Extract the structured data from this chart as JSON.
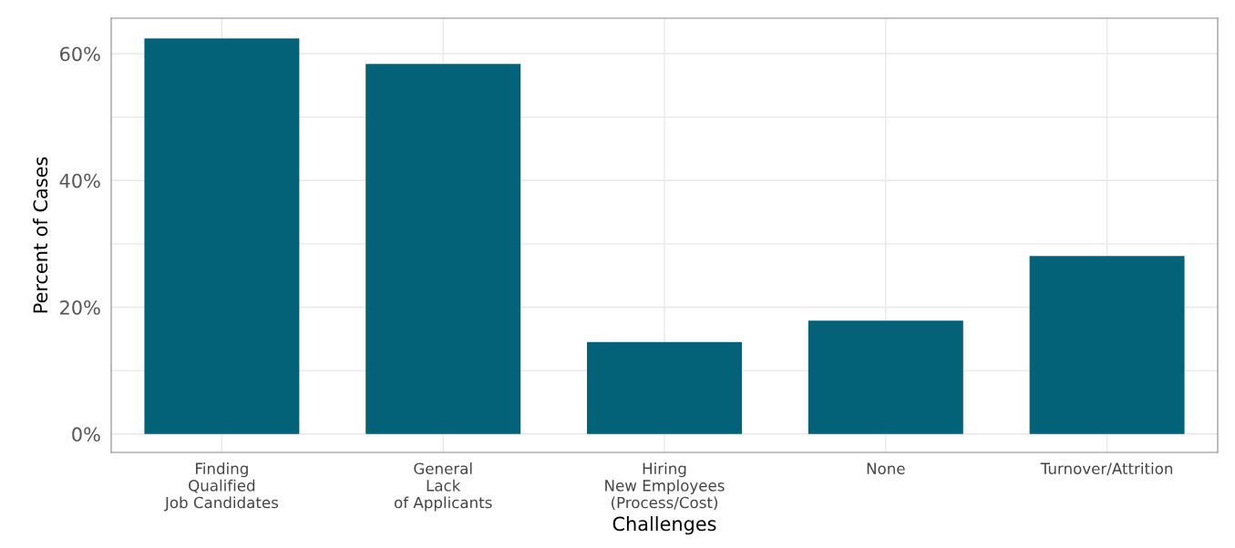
{
  "chart_data": {
    "type": "bar",
    "xlabel": "Challenges",
    "ylabel": "Percent of Cases",
    "categories": [
      "Finding\nQualified\nJob Candidates",
      "General\nLack\nof Applicants",
      "Hiring\nNew Employees\n(Process/Cost)",
      "None",
      "Turnover/Attrition"
    ],
    "values": [
      62.4,
      58.4,
      14.5,
      17.9,
      28.1
    ],
    "color": "#036178",
    "ylim": [
      -2.9,
      65.6
    ],
    "yticks": [
      {
        "value": 0,
        "label": "0%"
      },
      {
        "value": 10,
        "label": null
      },
      {
        "value": 20,
        "label": "20%"
      },
      {
        "value": 30,
        "label": null
      },
      {
        "value": 40,
        "label": "40%"
      },
      {
        "value": 50,
        "label": null
      },
      {
        "value": 60,
        "label": "60%"
      }
    ],
    "grid": true,
    "legend": false
  }
}
